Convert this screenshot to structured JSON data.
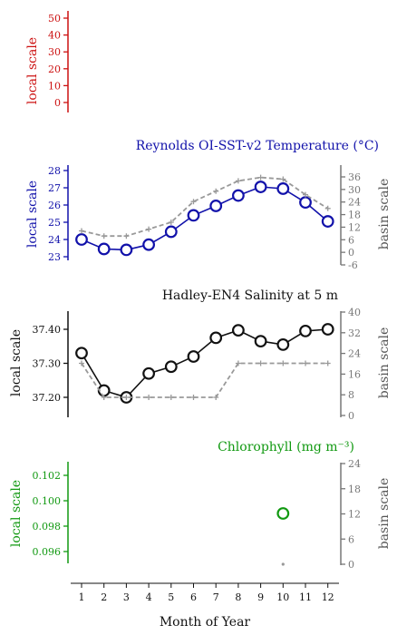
{
  "xlabel": "Month of Year",
  "x_ticks": [
    "1",
    "2",
    "3",
    "4",
    "5",
    "6",
    "7",
    "8",
    "9",
    "10",
    "11",
    "12"
  ],
  "chart_data": [
    {
      "type": "line",
      "title": "",
      "color": "#cc1111",
      "left_label": "local scale",
      "left_ticks": [
        "50",
        "40",
        "30",
        "20",
        "10",
        "0"
      ],
      "ylim": [
        -5,
        55
      ],
      "x": [],
      "series": []
    },
    {
      "type": "line",
      "title": "Reynolds OI-SST-v2 Temperature (°C)",
      "color": "#1111aa",
      "left_label": "local scale",
      "right_label": "basin scale",
      "left_ticks": [
        "28",
        "27",
        "26",
        "25",
        "24",
        "23"
      ],
      "right_ticks": [
        "36",
        "30",
        "24",
        "18",
        "12",
        "6",
        "0",
        "-6"
      ],
      "ylim": [
        22.7,
        28.3
      ],
      "ylim_right": [
        -6,
        36
      ],
      "x": [
        1,
        2,
        3,
        4,
        5,
        6,
        7,
        8,
        9,
        10,
        11,
        12
      ],
      "series": [
        {
          "axis": "left",
          "style": "solid",
          "marker": "circle",
          "values": [
            24.0,
            23.45,
            23.4,
            23.7,
            24.45,
            25.4,
            25.95,
            26.55,
            27.05,
            26.95,
            26.15,
            25.05
          ]
        },
        {
          "axis": "right",
          "style": "dashed",
          "marker": "plus",
          "values": [
            24.5,
            24.2,
            24.2,
            24.6,
            25.0,
            26.2,
            26.8,
            27.4,
            27.6,
            27.5,
            26.6,
            25.8
          ]
        }
      ]
    },
    {
      "type": "line",
      "title": "Hadley-EN4 Salinity at 5 m",
      "color": "#111111",
      "left_label": "local scale",
      "right_label": "basin scale",
      "left_ticks": [
        "37.40",
        "37.30",
        "37.20"
      ],
      "right_ticks": [
        "40",
        "32",
        "24",
        "16",
        "8",
        "0"
      ],
      "ylim": [
        37.14,
        37.47
      ],
      "ylim_right": [
        0,
        40
      ],
      "x": [
        1,
        2,
        3,
        4,
        5,
        6,
        7,
        8,
        9,
        10,
        11,
        12
      ],
      "series": [
        {
          "axis": "left",
          "style": "solid",
          "marker": "circle",
          "values": [
            37.33,
            37.22,
            37.2,
            37.27,
            37.29,
            37.32,
            37.375,
            37.397,
            37.365,
            37.355,
            37.395,
            37.4
          ]
        },
        {
          "axis": "right",
          "style": "dashed",
          "marker": "plus",
          "values": [
            37.3,
            37.2,
            37.2,
            37.2,
            37.2,
            37.2,
            37.2,
            37.3,
            37.3,
            37.3,
            37.3,
            37.3
          ]
        }
      ]
    },
    {
      "type": "scatter",
      "title": "Chlorophyll (mg m⁻³)",
      "color": "#119911",
      "left_label": "local scale",
      "right_label": "basin scale",
      "left_ticks": [
        "0.102",
        "0.100",
        "0.098",
        "0.096"
      ],
      "right_ticks": [
        "24",
        "18",
        "12",
        "6",
        "0"
      ],
      "ylim": [
        0.0947,
        0.1033
      ],
      "ylim_right": [
        0,
        24
      ],
      "x": [
        10
      ],
      "series": [
        {
          "axis": "left",
          "style": "none",
          "marker": "circle",
          "values": [
            0.099
          ]
        },
        {
          "axis": "right",
          "style": "none",
          "marker": "dot",
          "values": [
            0.1
          ]
        }
      ]
    }
  ]
}
